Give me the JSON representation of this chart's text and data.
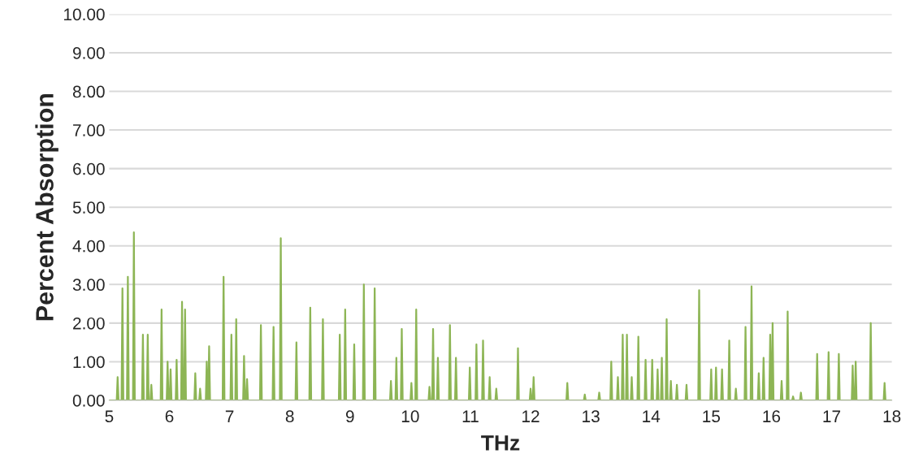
{
  "chart_data": {
    "type": "line",
    "xlabel": "THz",
    "ylabel": "Percent Absorption",
    "series": [
      {
        "color": "#8db555",
        "x": [
          5.0,
          5.125,
          5.14,
          5.155,
          5.205,
          5.22,
          5.235,
          5.295,
          5.31,
          5.325,
          5.395,
          5.41,
          5.425,
          5.545,
          5.56,
          5.575,
          5.625,
          5.64,
          5.655,
          5.685,
          5.7,
          5.715,
          5.855,
          5.87,
          5.885,
          5.955,
          5.97,
          5.985,
          6.005,
          6.02,
          6.035,
          6.105,
          6.12,
          6.135,
          6.195,
          6.21,
          6.225,
          6.245,
          6.26,
          6.275,
          6.415,
          6.43,
          6.445,
          6.495,
          6.51,
          6.525,
          6.605,
          6.62,
          6.635,
          6.645,
          6.66,
          6.675,
          6.885,
          6.9,
          6.915,
          7.015,
          7.03,
          7.045,
          7.095,
          7.11,
          7.125,
          7.225,
          7.24,
          7.255,
          7.275,
          7.29,
          7.305,
          7.505,
          7.52,
          7.535,
          7.715,
          7.73,
          7.745,
          7.835,
          7.85,
          7.865,
          8.095,
          8.11,
          8.125,
          8.325,
          8.34,
          8.355,
          8.535,
          8.55,
          8.565,
          8.815,
          8.83,
          8.845,
          8.905,
          8.92,
          8.935,
          9.055,
          9.07,
          9.085,
          9.215,
          9.23,
          9.245,
          9.395,
          9.41,
          9.425,
          9.665,
          9.68,
          9.695,
          9.755,
          9.77,
          9.785,
          9.845,
          9.86,
          9.875,
          10.005,
          10.02,
          10.035,
          10.085,
          10.1,
          10.115,
          10.305,
          10.32,
          10.335,
          10.365,
          10.38,
          10.395,
          10.445,
          10.46,
          10.475,
          10.645,
          10.66,
          10.675,
          10.745,
          10.76,
          10.775,
          10.975,
          10.99,
          11.005,
          11.085,
          11.1,
          11.115,
          11.195,
          11.21,
          11.225,
          11.305,
          11.32,
          11.335,
          11.415,
          11.43,
          11.445,
          11.775,
          11.79,
          11.805,
          11.985,
          12.0,
          12.015,
          12.035,
          12.05,
          12.065,
          12.595,
          12.61,
          12.625,
          12.885,
          12.9,
          12.915,
          13.125,
          13.14,
          13.155,
          13.325,
          13.34,
          13.355,
          13.435,
          13.45,
          13.465,
          13.515,
          13.53,
          13.545,
          13.585,
          13.6,
          13.615,
          13.665,
          13.68,
          13.695,
          13.775,
          13.79,
          13.805,
          13.895,
          13.91,
          13.925,
          14.005,
          14.02,
          14.035,
          14.095,
          14.11,
          14.125,
          14.165,
          14.18,
          14.195,
          14.245,
          14.26,
          14.275,
          14.315,
          14.33,
          14.345,
          14.415,
          14.43,
          14.445,
          14.575,
          14.59,
          14.605,
          14.785,
          14.8,
          14.815,
          14.985,
          15.0,
          15.015,
          15.065,
          15.08,
          15.095,
          15.165,
          15.18,
          15.195,
          15.285,
          15.3,
          15.315,
          15.395,
          15.41,
          15.425,
          15.555,
          15.57,
          15.585,
          15.655,
          15.67,
          15.685,
          15.775,
          15.79,
          15.805,
          15.855,
          15.87,
          15.885,
          15.965,
          15.98,
          15.995,
          16.005,
          16.02,
          16.035,
          16.155,
          16.17,
          16.185,
          16.255,
          16.27,
          16.285,
          16.345,
          16.36,
          16.375,
          16.475,
          16.49,
          16.505,
          16.745,
          16.76,
          16.775,
          16.935,
          16.95,
          16.965,
          17.105,
          17.12,
          17.135,
          17.335,
          17.35,
          17.365,
          17.385,
          17.4,
          17.415,
          17.635,
          17.65,
          17.665,
          17.865,
          17.88,
          17.895,
          18.0
        ],
        "values": [
          0,
          0,
          0.6,
          0,
          0,
          2.9,
          0,
          0,
          3.2,
          0,
          0,
          4.35,
          0,
          0,
          1.7,
          0,
          0,
          1.7,
          0,
          0,
          0.4,
          0,
          0,
          2.35,
          0,
          0,
          1.0,
          0,
          0,
          0.8,
          0,
          0,
          1.05,
          0,
          0,
          2.55,
          0,
          0,
          2.35,
          0,
          0,
          0.7,
          0,
          0,
          0.3,
          0,
          0,
          1.0,
          0,
          0,
          1.4,
          0,
          0,
          3.2,
          0,
          0,
          1.7,
          0,
          0,
          2.1,
          0,
          0,
          1.15,
          0,
          0,
          0.55,
          0,
          0,
          1.95,
          0,
          0,
          1.9,
          0,
          0,
          4.2,
          0,
          0,
          1.5,
          0,
          0,
          2.4,
          0,
          0,
          2.1,
          0,
          0,
          1.7,
          0,
          0,
          2.35,
          0,
          0,
          1.45,
          0,
          0,
          3.0,
          0,
          0,
          2.9,
          0,
          0,
          0.5,
          0,
          0,
          1.1,
          0,
          0,
          1.85,
          0,
          0,
          0.45,
          0,
          0,
          2.35,
          0,
          0,
          0.35,
          0,
          0,
          1.85,
          0,
          0,
          1.1,
          0,
          0,
          1.95,
          0,
          0,
          1.1,
          0,
          0,
          0.85,
          0,
          0,
          1.45,
          0,
          0,
          1.55,
          0,
          0,
          0.6,
          0,
          0,
          0.3,
          0,
          0,
          1.35,
          0,
          0,
          0.3,
          0,
          0,
          0.6,
          0,
          0,
          0.45,
          0,
          0,
          0.15,
          0,
          0,
          0.2,
          0,
          0,
          1.0,
          0,
          0,
          0.6,
          0,
          0,
          1.7,
          0,
          0,
          1.7,
          0,
          0,
          0.6,
          0,
          0,
          1.65,
          0,
          0,
          1.05,
          0,
          0,
          1.05,
          0,
          0,
          0.8,
          0,
          0,
          1.1,
          0,
          0,
          2.1,
          0,
          0,
          0.5,
          0,
          0,
          0.4,
          0,
          0,
          0.4,
          0,
          0,
          2.85,
          0,
          0,
          0.8,
          0,
          0,
          0.85,
          0,
          0,
          0.8,
          0,
          0,
          1.55,
          0,
          0,
          0.3,
          0,
          0,
          1.9,
          0,
          0,
          2.95,
          0,
          0,
          0.7,
          0,
          0,
          1.1,
          0,
          0,
          1.7,
          0,
          0,
          2.0,
          0,
          0,
          0.5,
          0,
          0,
          2.3,
          0,
          0,
          0.1,
          0,
          0,
          0.2,
          0,
          0,
          1.2,
          0,
          0,
          1.25,
          0,
          0,
          1.2,
          0,
          0,
          0.9,
          0,
          0,
          1.0,
          0,
          0,
          2.0,
          0,
          0,
          0.45,
          0,
          0
        ]
      }
    ],
    "xlim": [
      5,
      18
    ],
    "xticks": [
      5,
      6,
      7,
      8,
      9,
      10,
      11,
      12,
      13,
      14,
      15,
      16,
      17,
      18
    ],
    "ylim": [
      0,
      10
    ],
    "yticks": [
      {
        "value": 0,
        "label": "0.00"
      },
      {
        "value": 1,
        "label": "1.00"
      },
      {
        "value": 2,
        "label": "2.00"
      },
      {
        "value": 3,
        "label": "3.00"
      },
      {
        "value": 4,
        "label": "4.00"
      },
      {
        "value": 5,
        "label": "5.00"
      },
      {
        "value": 6,
        "label": "6.00"
      },
      {
        "value": 7,
        "label": "7.00"
      },
      {
        "value": 8,
        "label": "8.00"
      },
      {
        "value": 9,
        "label": "9.00"
      },
      {
        "value": 10,
        "label": "10.00"
      }
    ],
    "grid": "y"
  }
}
